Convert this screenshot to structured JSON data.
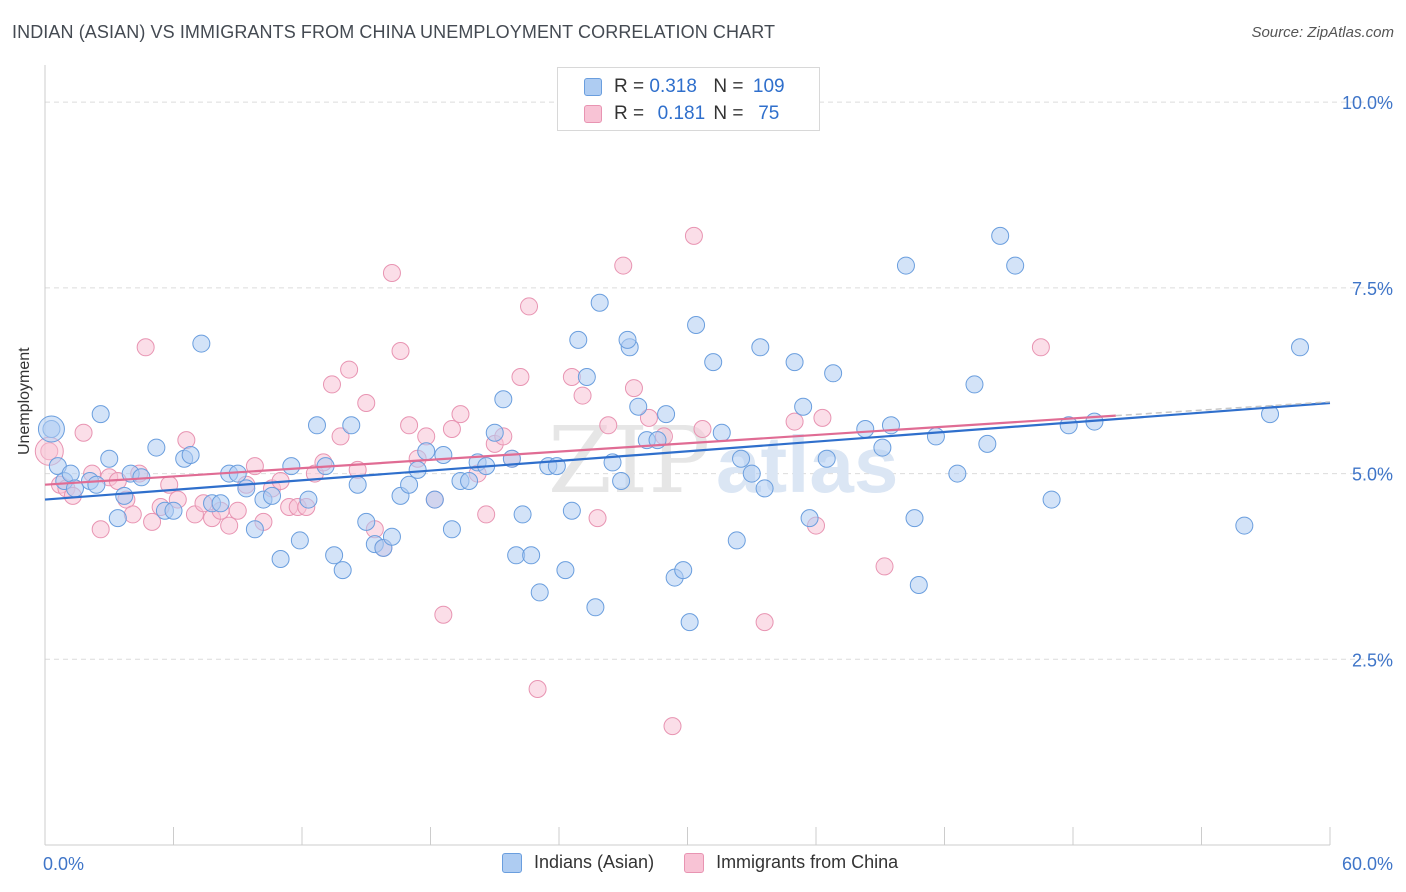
{
  "title": "INDIAN (ASIAN) VS IMMIGRANTS FROM CHINA UNEMPLOYMENT CORRELATION CHART",
  "source": "Source: ZipAtlas.com",
  "watermark": {
    "zip": "ZIP",
    "atlas": "atlas"
  },
  "legend": {
    "r_label": "R =",
    "n_label": "N =",
    "series": [
      {
        "name": "Indians (Asian)",
        "r": "0.318",
        "n": "109",
        "color": "#6a9ede"
      },
      {
        "name": "Immigrants from China",
        "r": "0.181",
        "n": "75",
        "color": "#e894b2"
      }
    ]
  },
  "chart_data": {
    "type": "scatter",
    "xlabel": "",
    "ylabel": "Unemployment",
    "xlim": [
      0,
      60
    ],
    "ylim": [
      0,
      10.5
    ],
    "x_tick_labels": [
      "0.0%",
      "60.0%"
    ],
    "y_tick_labels": [
      "2.5%",
      "5.0%",
      "7.5%",
      "10.0%"
    ],
    "y_ticks": [
      2.5,
      5.0,
      7.5,
      10.0
    ],
    "grid": "horizontal dashed",
    "legend_placement": "top-center",
    "colors": {
      "blue_fill": "#aeccf2",
      "blue_stroke": "#6a9ede",
      "blue_line": "#2f6fcc",
      "pink_fill": "#f8c3d5",
      "pink_stroke": "#e894b2",
      "pink_line": "#e06c94",
      "tick_text": "#3f75c8"
    },
    "series": [
      {
        "name": "Indians (Asian)",
        "trend": {
          "x": [
            0,
            60
          ],
          "y": [
            4.65,
            5.95
          ]
        },
        "points": [
          [
            0.3,
            5.6
          ],
          [
            0.6,
            5.1
          ],
          [
            0.9,
            4.9
          ],
          [
            1.2,
            5.0
          ],
          [
            1.4,
            4.8
          ],
          [
            2.1,
            4.9
          ],
          [
            2.4,
            4.85
          ],
          [
            2.6,
            5.8
          ],
          [
            3.0,
            5.2
          ],
          [
            3.4,
            4.4
          ],
          [
            3.7,
            4.7
          ],
          [
            4.0,
            5.0
          ],
          [
            4.5,
            4.95
          ],
          [
            5.2,
            5.35
          ],
          [
            5.6,
            4.5
          ],
          [
            6.0,
            4.5
          ],
          [
            6.5,
            5.2
          ],
          [
            6.8,
            5.25
          ],
          [
            7.3,
            6.75
          ],
          [
            7.8,
            4.6
          ],
          [
            8.2,
            4.6
          ],
          [
            8.6,
            5.0
          ],
          [
            9.0,
            5.0
          ],
          [
            9.4,
            4.8
          ],
          [
            9.8,
            4.25
          ],
          [
            10.2,
            4.65
          ],
          [
            10.6,
            4.7
          ],
          [
            11.0,
            3.85
          ],
          [
            11.5,
            5.1
          ],
          [
            11.9,
            4.1
          ],
          [
            12.3,
            4.65
          ],
          [
            12.7,
            5.65
          ],
          [
            13.1,
            5.1
          ],
          [
            13.5,
            3.9
          ],
          [
            13.9,
            3.7
          ],
          [
            14.3,
            5.65
          ],
          [
            14.6,
            4.85
          ],
          [
            15.0,
            4.35
          ],
          [
            15.4,
            4.05
          ],
          [
            15.8,
            4.0
          ],
          [
            16.2,
            4.15
          ],
          [
            16.6,
            4.7
          ],
          [
            17.0,
            4.85
          ],
          [
            17.4,
            5.05
          ],
          [
            17.8,
            5.3
          ],
          [
            18.2,
            4.65
          ],
          [
            18.6,
            5.25
          ],
          [
            19.0,
            4.25
          ],
          [
            19.4,
            4.9
          ],
          [
            19.8,
            4.9
          ],
          [
            20.2,
            5.15
          ],
          [
            20.6,
            5.1
          ],
          [
            21.0,
            5.55
          ],
          [
            21.4,
            6.0
          ],
          [
            21.8,
            5.2
          ],
          [
            22.0,
            3.9
          ],
          [
            22.3,
            4.45
          ],
          [
            22.7,
            3.9
          ],
          [
            23.1,
            3.4
          ],
          [
            23.5,
            5.1
          ],
          [
            23.9,
            5.1
          ],
          [
            24.3,
            3.7
          ],
          [
            24.6,
            4.5
          ],
          [
            24.9,
            6.8
          ],
          [
            25.3,
            6.3
          ],
          [
            25.7,
            3.2
          ],
          [
            25.9,
            7.3
          ],
          [
            26.5,
            5.15
          ],
          [
            26.9,
            4.9
          ],
          [
            27.3,
            6.7
          ],
          [
            27.7,
            5.9
          ],
          [
            28.1,
            5.45
          ],
          [
            28.6,
            5.45
          ],
          [
            29.0,
            5.8
          ],
          [
            29.4,
            3.6
          ],
          [
            29.8,
            3.7
          ],
          [
            30.1,
            3.0
          ],
          [
            30.4,
            7.0
          ],
          [
            31.2,
            6.5
          ],
          [
            31.6,
            5.55
          ],
          [
            32.3,
            4.1
          ],
          [
            32.5,
            5.2
          ],
          [
            33.4,
            6.7
          ],
          [
            33.6,
            4.8
          ],
          [
            35.0,
            6.5
          ],
          [
            35.4,
            5.9
          ],
          [
            35.7,
            4.4
          ],
          [
            36.5,
            5.2
          ],
          [
            36.8,
            6.35
          ],
          [
            38.3,
            5.6
          ],
          [
            39.1,
            5.35
          ],
          [
            39.5,
            5.65
          ],
          [
            40.2,
            7.8
          ],
          [
            40.6,
            4.4
          ],
          [
            40.8,
            3.5
          ],
          [
            41.6,
            5.5
          ],
          [
            42.6,
            5.0
          ],
          [
            43.4,
            6.2
          ],
          [
            44.0,
            5.4
          ],
          [
            44.6,
            8.2
          ],
          [
            45.3,
            7.8
          ],
          [
            47.0,
            4.65
          ],
          [
            47.8,
            5.65
          ],
          [
            49.0,
            5.7
          ],
          [
            56.0,
            4.3
          ],
          [
            57.2,
            5.8
          ],
          [
            58.6,
            6.7
          ],
          [
            33.0,
            5.0
          ],
          [
            27.2,
            6.8
          ]
        ]
      },
      {
        "name": "Immigrants from China",
        "trend": {
          "x": [
            0,
            50
          ],
          "y": [
            4.85,
            5.78
          ]
        },
        "points": [
          [
            0.2,
            5.3
          ],
          [
            0.7,
            4.85
          ],
          [
            1.0,
            4.8
          ],
          [
            1.3,
            4.7
          ],
          [
            1.8,
            5.55
          ],
          [
            2.2,
            5.0
          ],
          [
            2.6,
            4.25
          ],
          [
            3.0,
            4.95
          ],
          [
            3.4,
            4.9
          ],
          [
            3.8,
            4.65
          ],
          [
            4.1,
            4.45
          ],
          [
            4.4,
            5.0
          ],
          [
            4.7,
            6.7
          ],
          [
            5.0,
            4.35
          ],
          [
            5.4,
            4.55
          ],
          [
            5.8,
            4.85
          ],
          [
            6.2,
            4.65
          ],
          [
            6.6,
            5.45
          ],
          [
            7.0,
            4.45
          ],
          [
            7.4,
            4.6
          ],
          [
            7.8,
            4.4
          ],
          [
            8.2,
            4.5
          ],
          [
            8.6,
            4.3
          ],
          [
            9.0,
            4.5
          ],
          [
            9.4,
            4.85
          ],
          [
            9.8,
            5.1
          ],
          [
            10.2,
            4.35
          ],
          [
            10.6,
            4.8
          ],
          [
            11.0,
            4.9
          ],
          [
            11.4,
            4.55
          ],
          [
            11.8,
            4.55
          ],
          [
            12.2,
            4.55
          ],
          [
            12.6,
            5.0
          ],
          [
            13.0,
            5.15
          ],
          [
            13.4,
            6.2
          ],
          [
            13.8,
            5.5
          ],
          [
            14.2,
            6.4
          ],
          [
            14.6,
            5.05
          ],
          [
            15.0,
            5.95
          ],
          [
            15.4,
            4.25
          ],
          [
            15.8,
            4.0
          ],
          [
            16.2,
            7.7
          ],
          [
            16.6,
            6.65
          ],
          [
            17.0,
            5.65
          ],
          [
            17.4,
            5.2
          ],
          [
            17.8,
            5.5
          ],
          [
            18.2,
            4.65
          ],
          [
            18.6,
            3.1
          ],
          [
            19.0,
            5.6
          ],
          [
            19.4,
            5.8
          ],
          [
            20.2,
            5.0
          ],
          [
            20.6,
            4.45
          ],
          [
            21.0,
            5.4
          ],
          [
            21.4,
            5.5
          ],
          [
            21.8,
            5.2
          ],
          [
            22.2,
            6.3
          ],
          [
            22.6,
            7.25
          ],
          [
            23.0,
            2.1
          ],
          [
            24.6,
            6.3
          ],
          [
            25.1,
            6.05
          ],
          [
            25.8,
            4.4
          ],
          [
            26.3,
            5.65
          ],
          [
            27.0,
            7.8
          ],
          [
            27.5,
            6.15
          ],
          [
            28.2,
            5.75
          ],
          [
            29.3,
            1.6
          ],
          [
            30.3,
            8.2
          ],
          [
            30.7,
            5.6
          ],
          [
            33.6,
            3.0
          ],
          [
            35.0,
            5.7
          ],
          [
            36.3,
            5.75
          ],
          [
            36.0,
            4.3
          ],
          [
            39.2,
            3.75
          ],
          [
            46.5,
            6.7
          ],
          [
            28.9,
            5.5
          ]
        ]
      }
    ]
  }
}
